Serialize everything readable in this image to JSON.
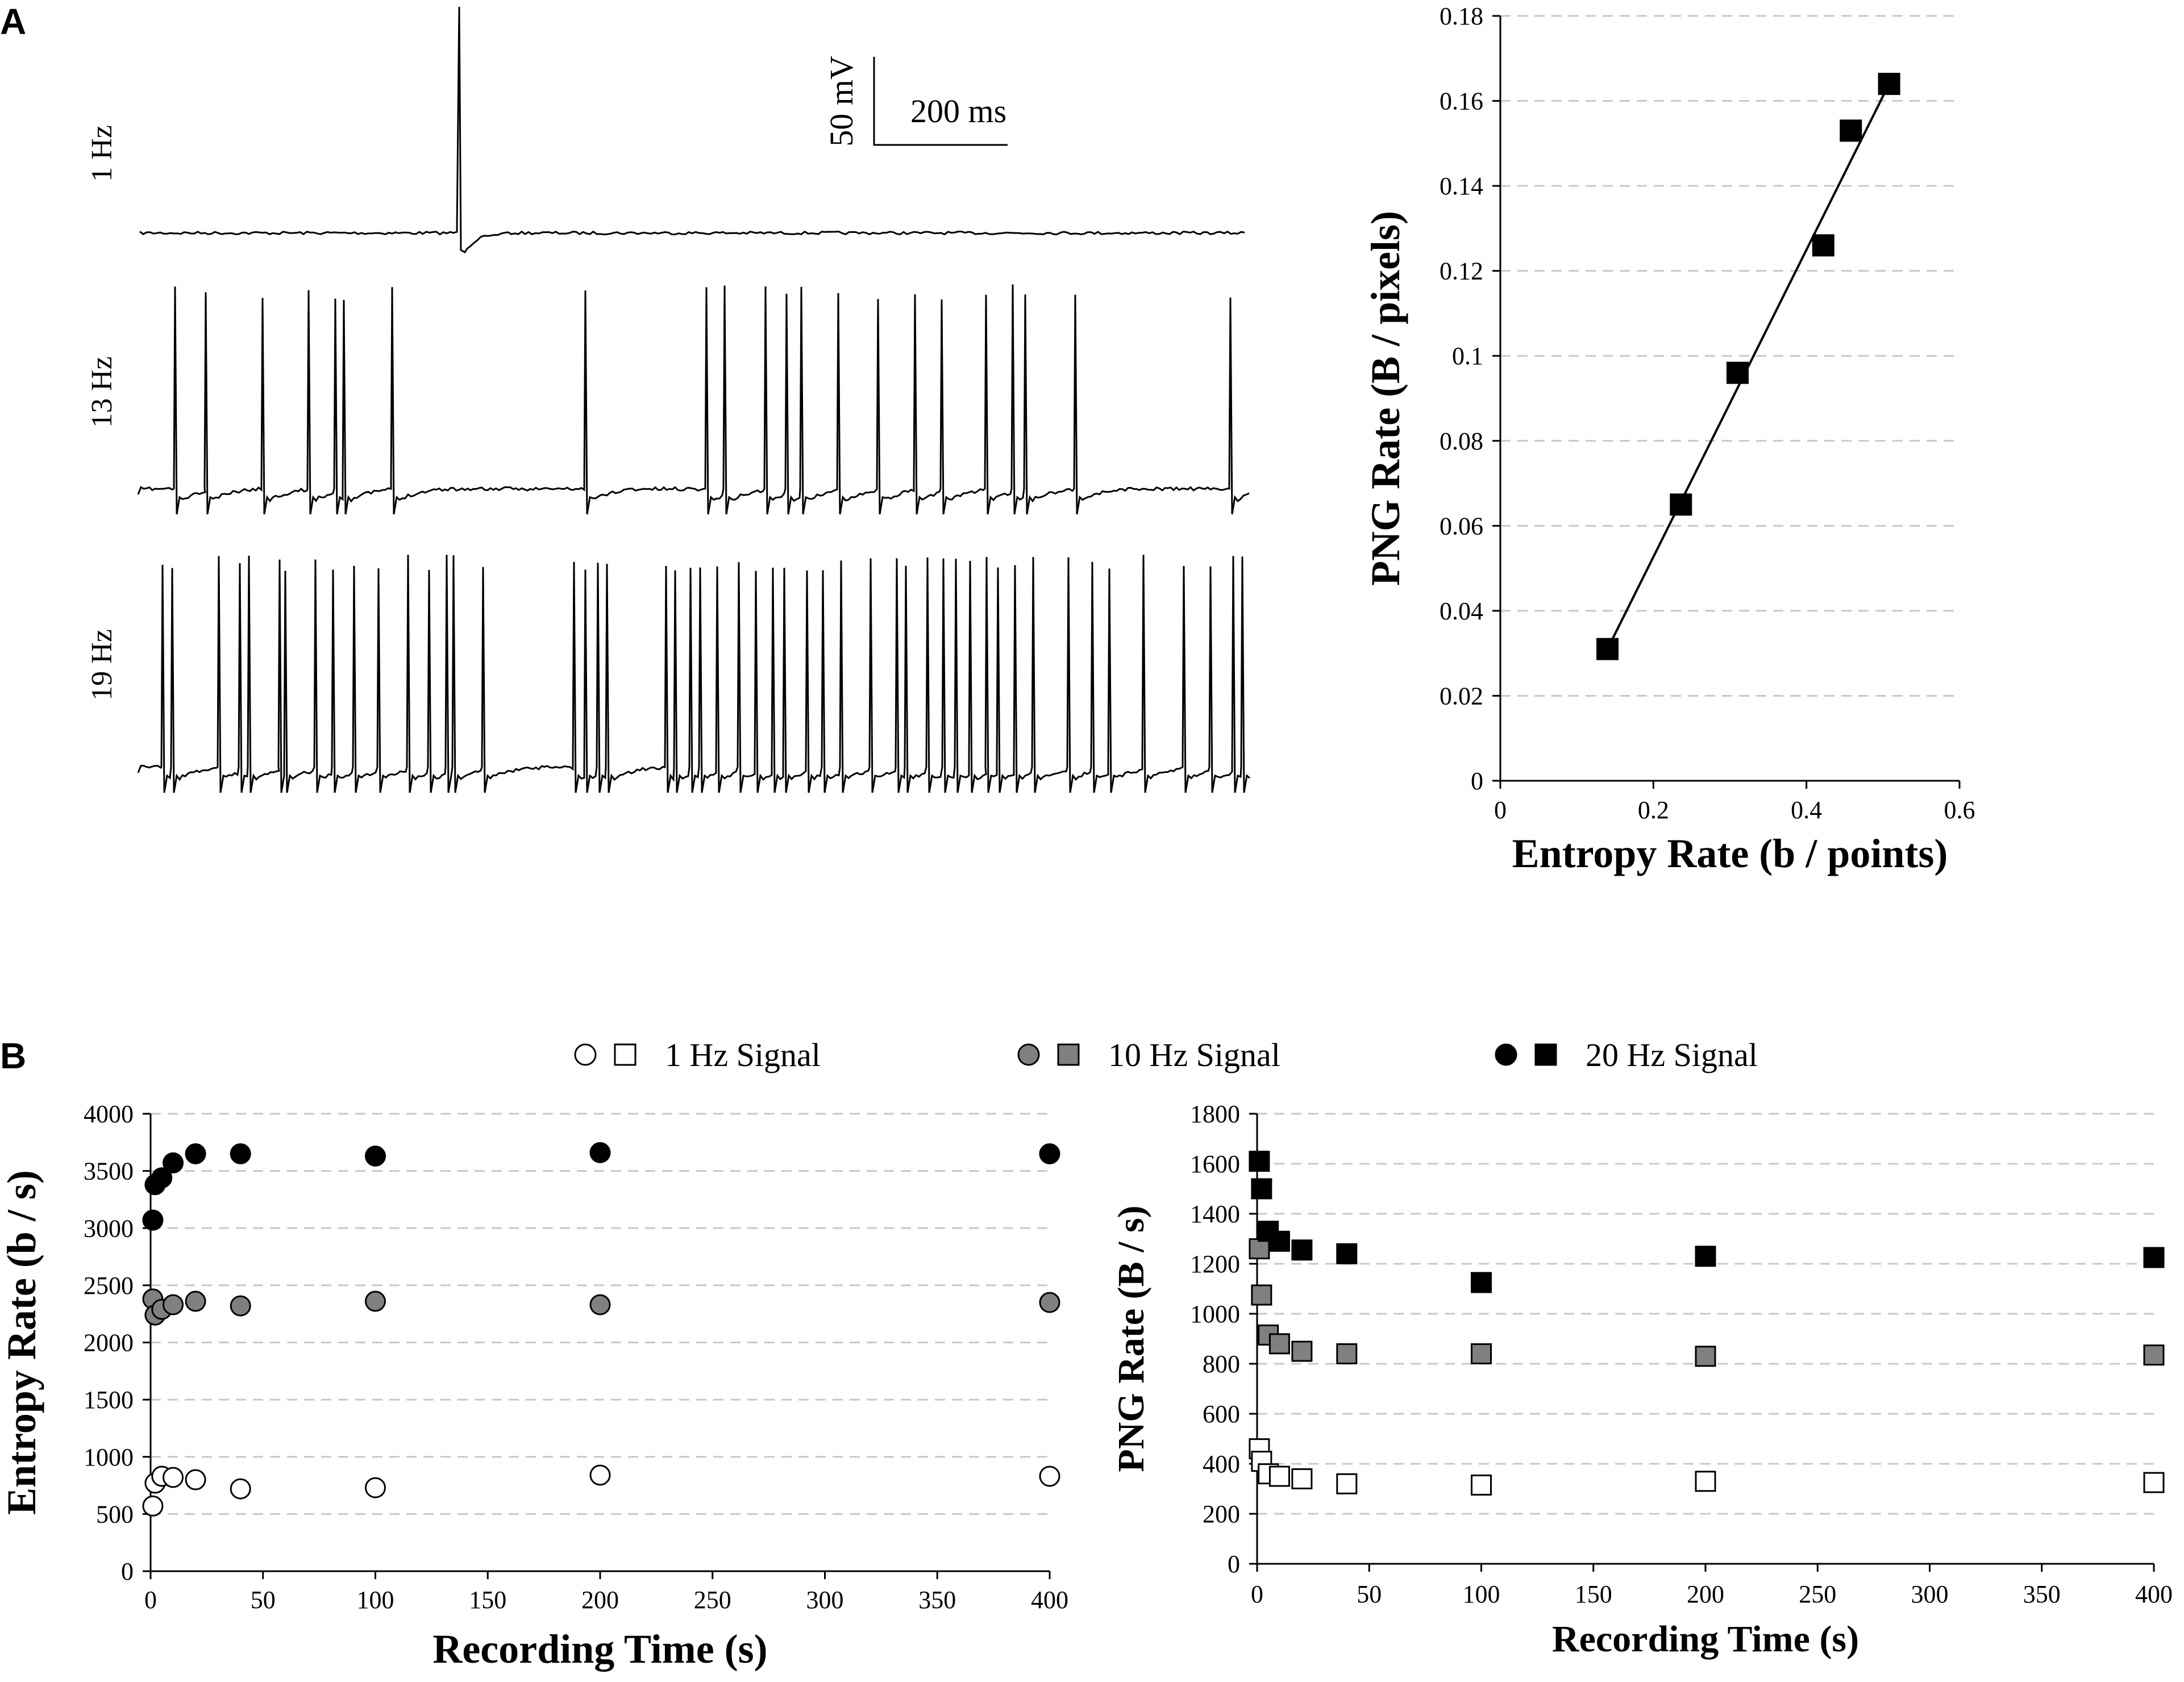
{
  "panels": {
    "A": "A",
    "B": "B"
  },
  "traces": {
    "labels": [
      "1 Hz",
      "13 Hz",
      "19 Hz"
    ],
    "scalebar": {
      "voltage": "50 mV",
      "time": "200 ms"
    }
  },
  "chart_data": [
    {
      "type": "scatter",
      "id": "png-vs-entropy",
      "title": "",
      "xlabel": "Entropy Rate (b / points)",
      "ylabel": "PNG Rate (B / pixels)",
      "xlim": [
        0,
        0.6
      ],
      "ylim": [
        0,
        0.18
      ],
      "xticks": [
        0,
        0.2,
        0.4,
        0.6
      ],
      "xtick_labels": [
        "0",
        "0.2",
        "0.4",
        "0.6"
      ],
      "yticks": [
        0,
        0.02,
        0.04,
        0.06,
        0.08,
        0.1,
        0.12,
        0.14,
        0.16,
        0.18
      ],
      "ytick_labels": [
        "0",
        "0.02",
        "0.04",
        "0.06",
        "0.08",
        "0.1",
        "0.12",
        "0.14",
        "0.16",
        "0.18"
      ],
      "points": [
        {
          "x": 0.14,
          "y": 0.031
        },
        {
          "x": 0.236,
          "y": 0.065
        },
        {
          "x": 0.31,
          "y": 0.096
        },
        {
          "x": 0.422,
          "y": 0.126
        },
        {
          "x": 0.458,
          "y": 0.153
        },
        {
          "x": 0.508,
          "y": 0.164
        }
      ],
      "fit_line": {
        "x": [
          0.14,
          0.508
        ],
        "y": [
          0.031,
          0.164
        ]
      },
      "grid": true
    },
    {
      "type": "scatter",
      "id": "entropy-vs-time",
      "xlabel": "Recording Time (s)",
      "ylabel": "Entropy Rate (b / s)",
      "xlim": [
        0,
        400
      ],
      "ylim": [
        0,
        4000
      ],
      "xticks": [
        0,
        50,
        100,
        150,
        200,
        250,
        300,
        350,
        400
      ],
      "yticks": [
        0,
        500,
        1000,
        1500,
        2000,
        2500,
        3000,
        3500,
        4000
      ],
      "grid": true,
      "series": [
        {
          "name": "1 Hz Signal",
          "marker": "circle",
          "fill": "#ffffff",
          "x": [
            1,
            2,
            5,
            10,
            20,
            40,
            100,
            200,
            400
          ],
          "y": [
            570,
            770,
            830,
            820,
            800,
            720,
            730,
            840,
            830
          ]
        },
        {
          "name": "10 Hz Signal",
          "marker": "circle",
          "fill": "#808080",
          "x": [
            1,
            2,
            5,
            10,
            20,
            40,
            100,
            200,
            400
          ],
          "y": [
            2380,
            2240,
            2290,
            2330,
            2360,
            2320,
            2360,
            2330,
            2350
          ]
        },
        {
          "name": "20 Hz Signal",
          "marker": "circle",
          "fill": "#000000",
          "x": [
            1,
            2,
            5,
            10,
            20,
            40,
            100,
            200,
            400
          ],
          "y": [
            3070,
            3380,
            3440,
            3570,
            3650,
            3650,
            3630,
            3660,
            3650
          ]
        }
      ]
    },
    {
      "type": "scatter",
      "id": "png-vs-time",
      "xlabel": "Recording Time (s)",
      "ylabel": "PNG Rate (B / s)",
      "xlim": [
        0,
        400
      ],
      "ylim": [
        0,
        1800
      ],
      "xticks": [
        0,
        50,
        100,
        150,
        200,
        250,
        300,
        350,
        400
      ],
      "yticks": [
        0,
        200,
        400,
        600,
        800,
        1000,
        1200,
        1400,
        1600,
        1800
      ],
      "grid": true,
      "series": [
        {
          "name": "1 Hz Signal",
          "marker": "square",
          "fill": "#ffffff",
          "x": [
            1,
            2,
            5,
            10,
            20,
            40,
            100,
            200,
            400
          ],
          "y": [
            460,
            410,
            360,
            350,
            340,
            320,
            315,
            330,
            325
          ]
        },
        {
          "name": "10 Hz Signal",
          "marker": "square",
          "fill": "#808080",
          "x": [
            1,
            2,
            5,
            10,
            20,
            40,
            100,
            200,
            400
          ],
          "y": [
            1260,
            1075,
            915,
            880,
            850,
            840,
            840,
            830,
            835
          ]
        },
        {
          "name": "20 Hz Signal",
          "marker": "square",
          "fill": "#000000",
          "x": [
            1,
            2,
            5,
            10,
            20,
            40,
            100,
            200,
            400
          ],
          "y": [
            1610,
            1500,
            1330,
            1290,
            1255,
            1240,
            1125,
            1230,
            1225
          ]
        }
      ]
    }
  ],
  "legend": [
    {
      "label": "1 Hz Signal",
      "fill": "#ffffff"
    },
    {
      "label": "10 Hz Signal",
      "fill": "#808080"
    },
    {
      "label": "20 Hz Signal",
      "fill": "#000000"
    }
  ]
}
